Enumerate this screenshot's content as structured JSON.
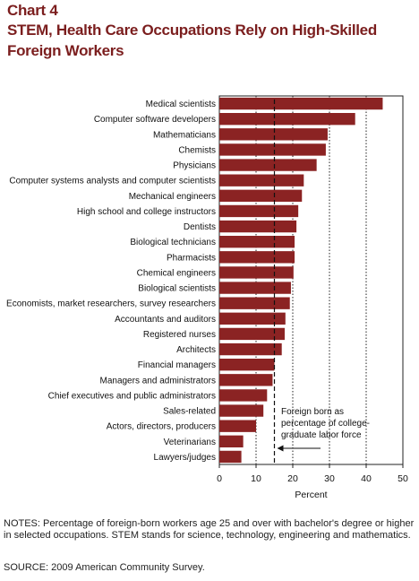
{
  "header": {
    "chart_number": "Chart 4",
    "title": "STEM, Health Care Occupations Rely on High-Skilled Foreign Workers"
  },
  "chart_data": {
    "type": "bar",
    "orientation": "horizontal",
    "categories": [
      "Medical scientists",
      "Computer software developers",
      "Mathematicians",
      "Chemists",
      "Physicians",
      "Computer systems analysts and computer scientists",
      "Mechanical engineers",
      "High school and college instructors",
      "Dentists",
      "Biological technicians",
      "Pharmacists",
      "Chemical engineers",
      "Biological scientists",
      "Economists, market researchers, survey researchers",
      "Accountants and auditors",
      "Registered nurses",
      "Architects",
      "Financial managers",
      "Managers and administrators",
      "Chief executives and public administrators",
      "Sales-related",
      "Actors, directors, producers",
      "Veterinarians",
      "Lawyers/judges"
    ],
    "values": [
      44.5,
      37,
      29.5,
      29,
      26.5,
      23,
      22.5,
      21.5,
      21,
      20.5,
      20.5,
      20.2,
      19.5,
      19.2,
      18,
      17.8,
      17,
      15,
      14.5,
      13,
      12,
      10,
      6.5,
      6
    ],
    "xlabel": "Percent",
    "xlim": [
      0,
      50
    ],
    "xticks": [
      "0",
      "10",
      "20",
      "30",
      "40",
      "50"
    ],
    "bar_color": "#8b2323",
    "gridlines": "dotted vertical at 10, 20, 30, 40",
    "reference_line": {
      "value": 15,
      "style": "dashed",
      "label": "Foreign born as percentage of college-graduate labor force"
    }
  },
  "notes": "NOTES: Percentage of foreign-born workers age 25 and over with bachelor's degree or higher in selected occupations. STEM stands for science, technology, engineering and mathematics.",
  "source": "SOURCE: 2009 American Community Survey."
}
